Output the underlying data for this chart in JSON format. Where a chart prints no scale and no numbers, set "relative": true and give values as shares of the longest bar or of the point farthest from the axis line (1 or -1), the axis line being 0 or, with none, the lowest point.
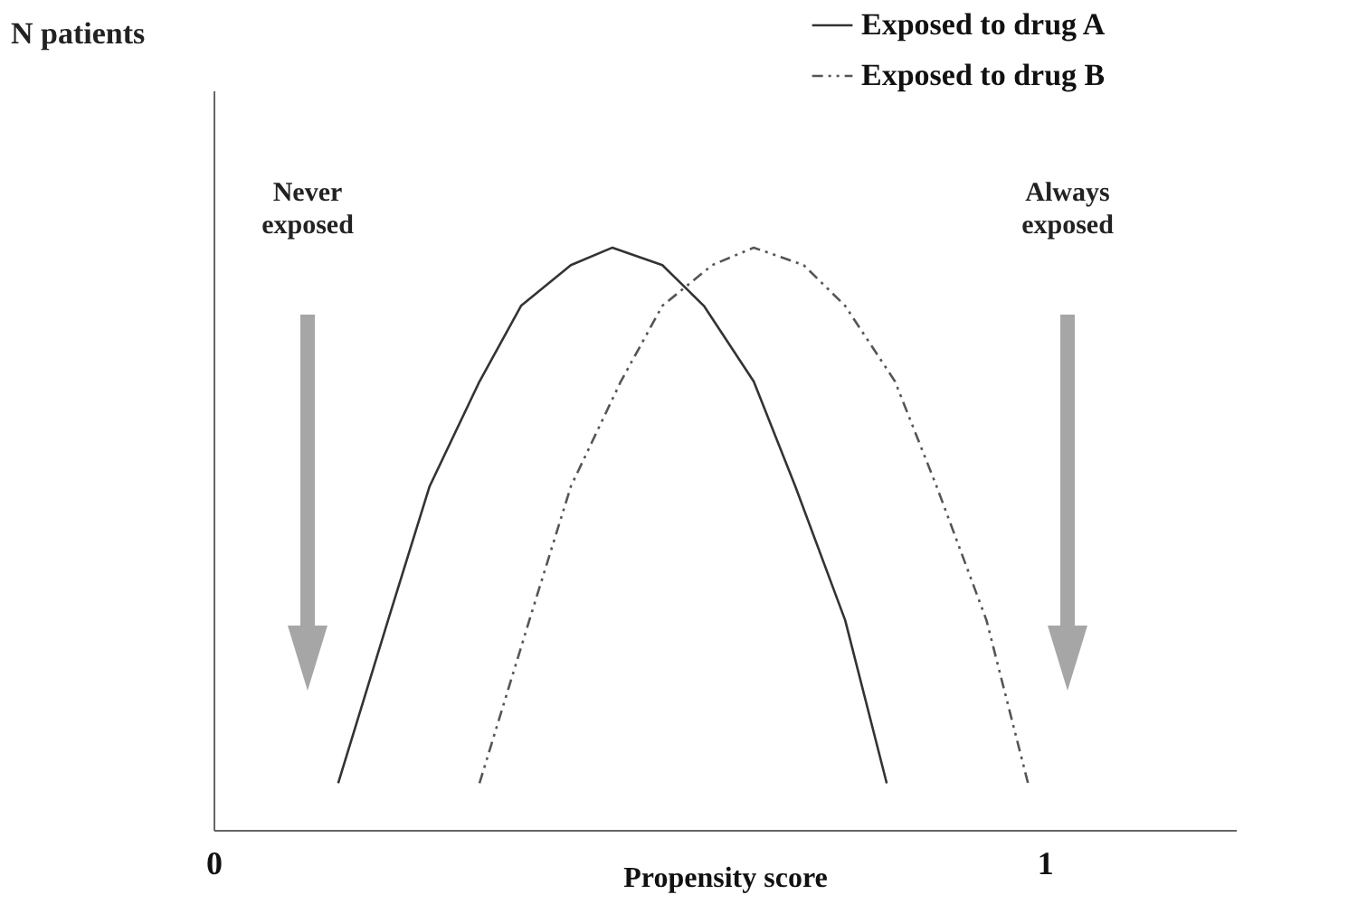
{
  "chart_data": {
    "type": "line",
    "xlabel": "Propensity score",
    "relative": true,
    "xlim": [
      0,
      1.23
    ],
    "xticks": [
      0,
      1
    ],
    "grid": false,
    "legend": "top right",
    "marker": "none",
    "annotations": [
      "N patients",
      "Never exposed",
      "Always exposed"
    ],
    "series": [
      {
        "name": "Exposed to drug A",
        "color": "#333333",
        "line_style": "solid",
        "x": [
          0.15,
          0.21,
          0.26,
          0.32,
          0.37,
          0.43,
          0.48,
          0.54,
          0.59,
          0.65,
          0.7,
          0.76,
          0.81
        ],
        "values": [
          0.08,
          0.36,
          0.59,
          0.77,
          0.9,
          0.97,
          1,
          0.97,
          0.9,
          0.77,
          0.59,
          0.36,
          0.08
        ]
      },
      {
        "name": "Exposed to drug B",
        "color": "#555555",
        "line_style": "dashed",
        "x": [
          0.32,
          0.38,
          0.43,
          0.49,
          0.54,
          0.6,
          0.65,
          0.71,
          0.76,
          0.82,
          0.87,
          0.93,
          0.98
        ],
        "values": [
          0.08,
          0.36,
          0.59,
          0.77,
          0.9,
          0.97,
          1,
          0.97,
          0.9,
          0.77,
          0.59,
          0.36,
          0.08
        ]
      }
    ]
  }
}
